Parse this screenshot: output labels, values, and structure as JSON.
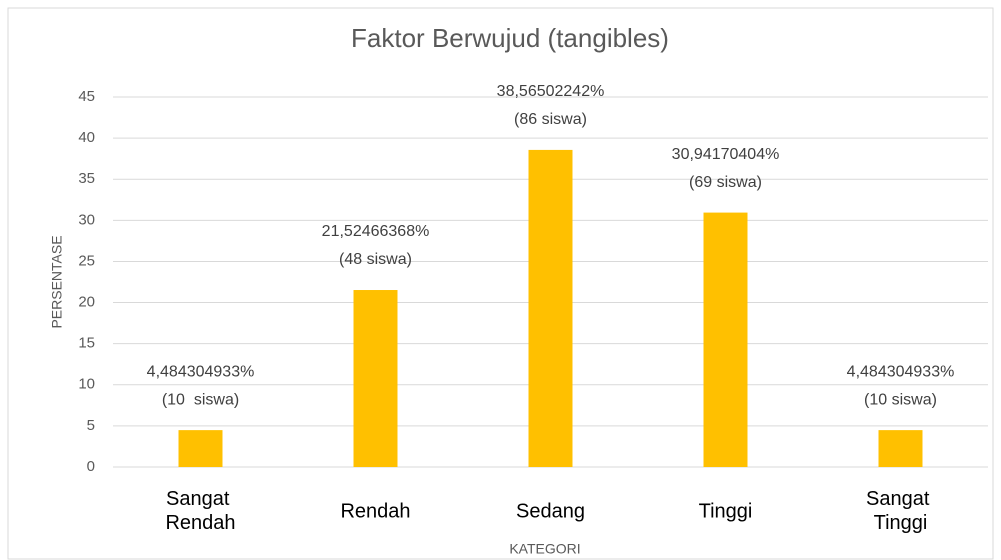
{
  "chart_data": {
    "type": "bar",
    "title": "Faktor Berwujud (tangibles)",
    "x_label": "KATEGORI",
    "y_label": "PERSENTASE",
    "categories": [
      "Sangat Rendah",
      "Rendah",
      "Sedang",
      "Tinggi",
      "Sangat Tinggi"
    ],
    "values": [
      4.484304933,
      21.52466368,
      38.56502242,
      30.94170404,
      4.484304933
    ],
    "value_labels": [
      "4,484304933%",
      "21,52466368%",
      "38,56502242%",
      "30,94170404%",
      "4,484304933%"
    ],
    "count_labels": [
      "(10  siswa)",
      "(48 siswa)",
      "(86 siswa)",
      "(69 siswa)",
      "(10 siswa)"
    ],
    "color": "#ffc000",
    "ylim": [
      0,
      45
    ],
    "yticks": [
      0,
      5,
      10,
      15,
      20,
      25,
      30,
      35,
      40,
      45
    ],
    "grid": true
  }
}
